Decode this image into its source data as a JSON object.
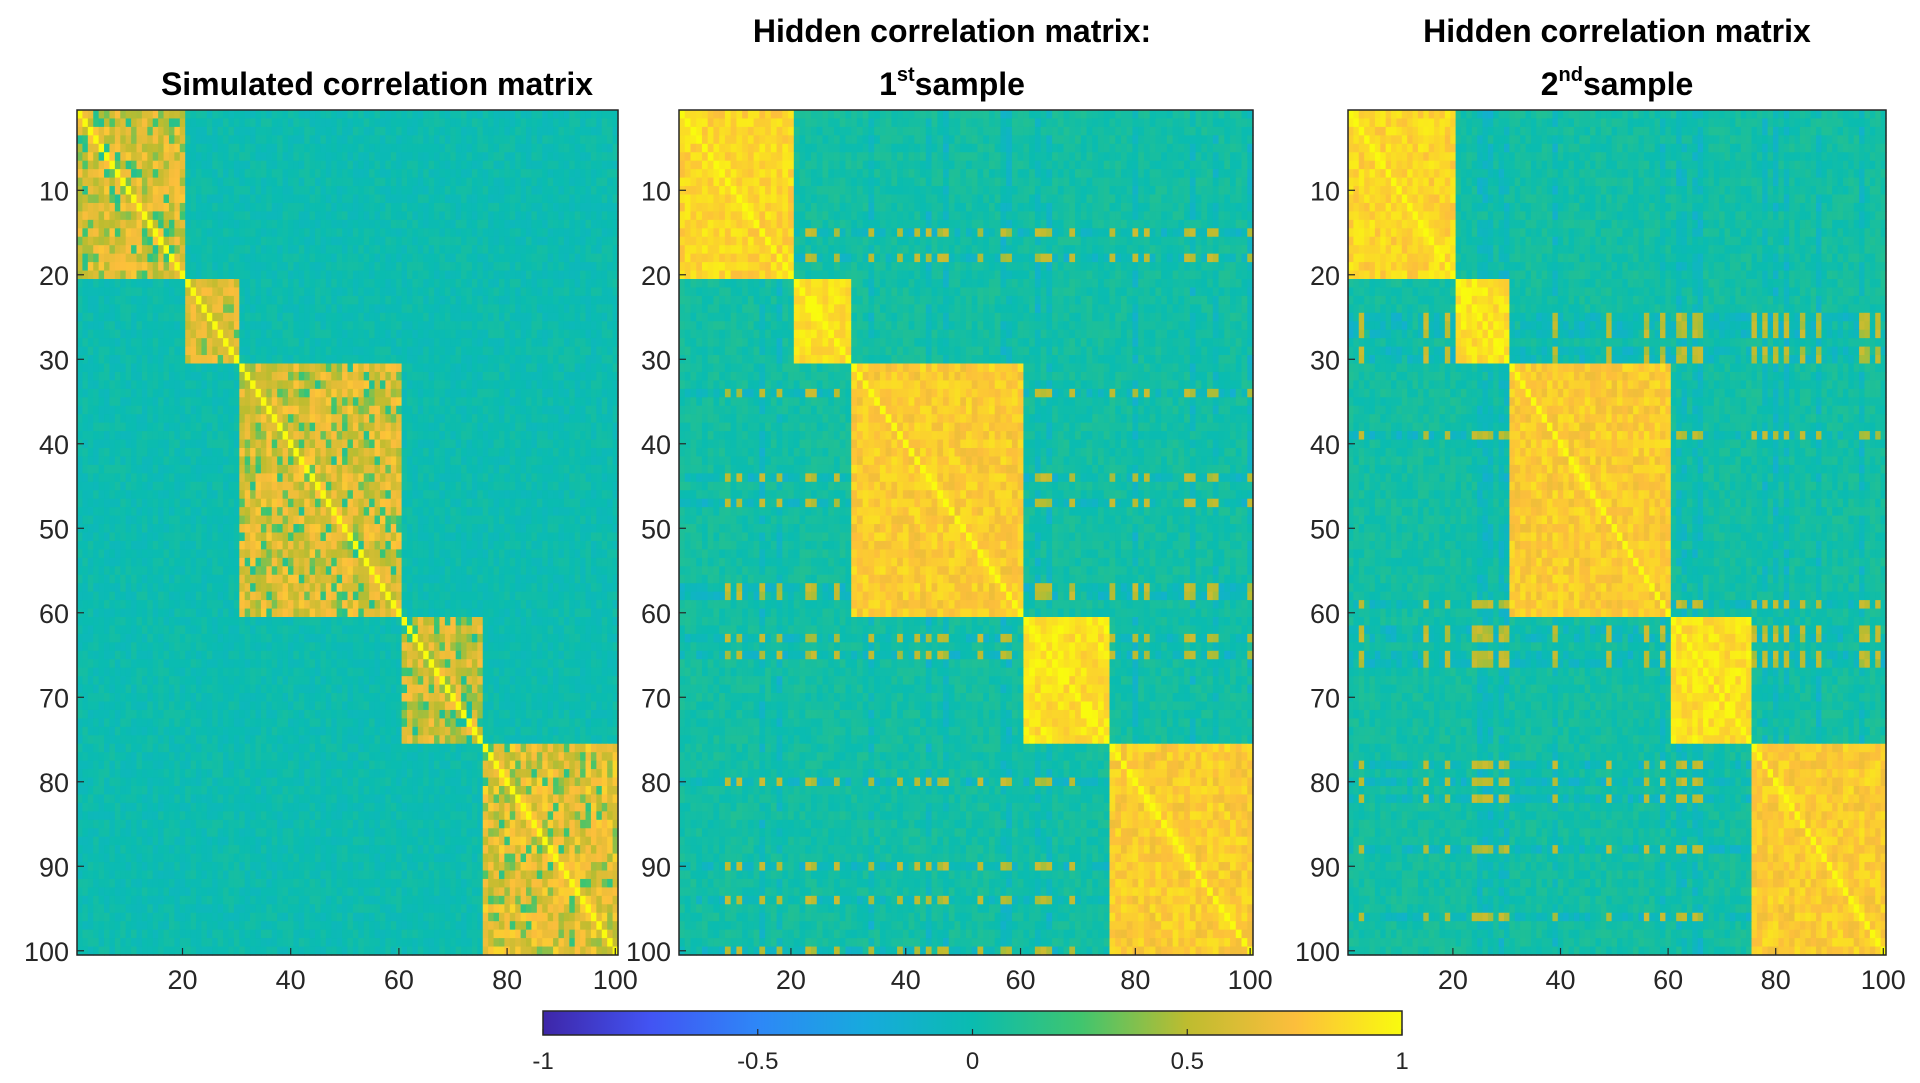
{
  "chart_data": [
    {
      "type": "heatmap",
      "title": "Simulated correlation matrix",
      "xlabel": "",
      "ylabel": "",
      "xlim": [
        1,
        100
      ],
      "ylim": [
        1,
        100
      ],
      "x_ticks": [
        "20",
        "40",
        "60",
        "80",
        "100"
      ],
      "y_ticks": [
        "10",
        "20",
        "30",
        "40",
        "50",
        "60",
        "70",
        "80",
        "90",
        "100"
      ],
      "blocks": [
        {
          "start": 1,
          "end": 20,
          "value": 0.8
        },
        {
          "start": 21,
          "end": 30,
          "value": 0.8
        },
        {
          "start": 31,
          "end": 60,
          "value": 0.8
        },
        {
          "start": 61,
          "end": 75,
          "value": 0.75
        },
        {
          "start": 76,
          "end": 100,
          "value": 0.85
        }
      ],
      "background_value": 0.0,
      "cross_block_pattern": false
    },
    {
      "type": "heatmap",
      "title_line1": "Hidden correlation matrix:",
      "title_line2_base": "1",
      "title_line2_sup": "st",
      "title_line2_rest": "sample",
      "xlim": [
        1,
        100
      ],
      "ylim": [
        1,
        100
      ],
      "x_ticks": [
        "20",
        "40",
        "60",
        "80",
        "100"
      ],
      "y_ticks": [
        "10",
        "20",
        "30",
        "40",
        "50",
        "60",
        "70",
        "80",
        "90",
        "100"
      ],
      "blocks": [
        {
          "start": 1,
          "end": 20,
          "value": 0.95
        },
        {
          "start": 21,
          "end": 30,
          "value": 1.0
        },
        {
          "start": 31,
          "end": 60,
          "value": 0.9
        },
        {
          "start": 61,
          "end": 75,
          "value": 1.0
        },
        {
          "start": 76,
          "end": 100,
          "value": 0.9
        }
      ],
      "background_value": 0.05,
      "cross_block_pattern": true
    },
    {
      "type": "heatmap",
      "title_line1": "Hidden correlation matrix",
      "title_line2_base": "2",
      "title_line2_sup": "nd",
      "title_line2_rest": "sample",
      "xlim": [
        1,
        100
      ],
      "ylim": [
        1,
        100
      ],
      "x_ticks": [
        "20",
        "40",
        "60",
        "80",
        "100"
      ],
      "y_ticks": [
        "10",
        "20",
        "30",
        "40",
        "50",
        "60",
        "70",
        "80",
        "90",
        "100"
      ],
      "blocks": [
        {
          "start": 1,
          "end": 20,
          "value": 0.95
        },
        {
          "start": 21,
          "end": 30,
          "value": 1.0
        },
        {
          "start": 31,
          "end": 60,
          "value": 0.9
        },
        {
          "start": 61,
          "end": 75,
          "value": 1.0
        },
        {
          "start": 76,
          "end": 100,
          "value": 0.9
        }
      ],
      "background_value": 0.05,
      "cross_block_pattern": true
    }
  ],
  "colorbar": {
    "colormap": "parula",
    "range": [
      -1,
      1
    ],
    "tick_labels": [
      "-1",
      "-0.5",
      "0",
      "0.5",
      "1"
    ],
    "tick_values": [
      -1,
      -0.5,
      0,
      0.5,
      1
    ]
  }
}
